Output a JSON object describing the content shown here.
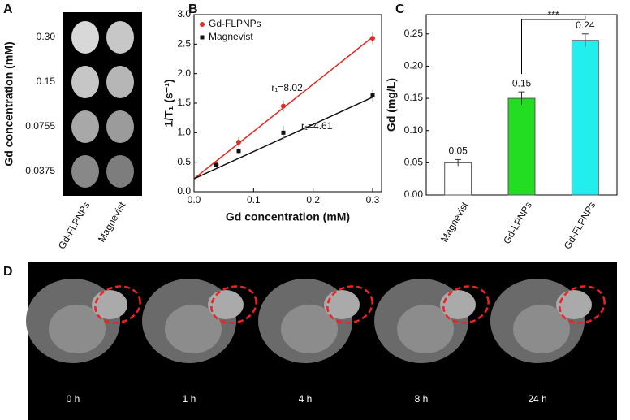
{
  "chart_data": [
    {
      "type": "image",
      "panel": "A",
      "y_label": "Gd concentration (mM)",
      "row_labels": [
        "0.30",
        "0.15",
        "0.0755",
        "0.0375"
      ],
      "column_labels": [
        "Gd-FLPNPs",
        "Magnevist"
      ]
    },
    {
      "type": "scatter",
      "panel": "B",
      "x_label": "Gd concentration (mM)",
      "y_label": "1/T₁ (s⁻¹)",
      "xlim": [
        0,
        0.315
      ],
      "ylim": [
        0,
        3.0
      ],
      "xticks": [
        {
          "value": 0,
          "label": "0.0"
        },
        0.1,
        0.2,
        0.3
      ],
      "yticks": [
        {
          "value": 0,
          "label": "0.0"
        },
        0.5,
        {
          "value": 1,
          "label": "1.0"
        },
        1.5,
        {
          "value": 2,
          "label": "2.0"
        },
        2.5,
        {
          "value": 3,
          "label": "3.0"
        }
      ],
      "legend": "upper left",
      "x": [
        0.0375,
        0.075,
        0.15,
        0.3
      ],
      "series": [
        {
          "name": "Gd-FLPNPs",
          "color": "#e8261e",
          "marker": "circle",
          "values": [
            0.46,
            0.84,
            1.45,
            2.6
          ],
          "errors": [
            0.05,
            0.08,
            0.1,
            0.1
          ],
          "fit_line": [
            [
              0,
              0.22
            ],
            [
              0.3,
              2.62
            ]
          ]
        },
        {
          "name": "Magnevist",
          "color": "#111111",
          "marker": "square",
          "values": [
            0.45,
            0.69,
            1.0,
            1.63
          ],
          "errors": [
            0.03,
            0.05,
            0.12,
            0.1
          ],
          "fit_line": [
            [
              0,
              0.22
            ],
            [
              0.3,
              1.6
            ]
          ]
        }
      ],
      "annotations": [
        "r₁=8.02",
        "r₁=4.61"
      ]
    },
    {
      "type": "bar",
      "panel": "C",
      "y_label": "Gd (mg/L)",
      "ylim": [
        0,
        0.28
      ],
      "yticks": [
        {
          "value": 0,
          "label": "0.00"
        },
        0.05,
        {
          "value": 0.1,
          "label": "0.10"
        },
        0.15,
        {
          "value": 0.2,
          "label": "0.20"
        },
        0.25
      ],
      "categories": [
        "Magnevist",
        "Gd-LPNPs",
        "Gd-FLPNPs"
      ],
      "values": [
        0.05,
        0.15,
        0.24
      ],
      "errors": [
        0.005,
        0.01,
        0.01
      ],
      "colors": [
        "#ffffff",
        "#22dd22",
        "#22eeee"
      ],
      "significance": "***"
    },
    {
      "type": "image",
      "panel": "D",
      "column_labels": [
        "0 h",
        "1 h",
        "4 h",
        "8 h",
        "24 h"
      ]
    }
  ]
}
